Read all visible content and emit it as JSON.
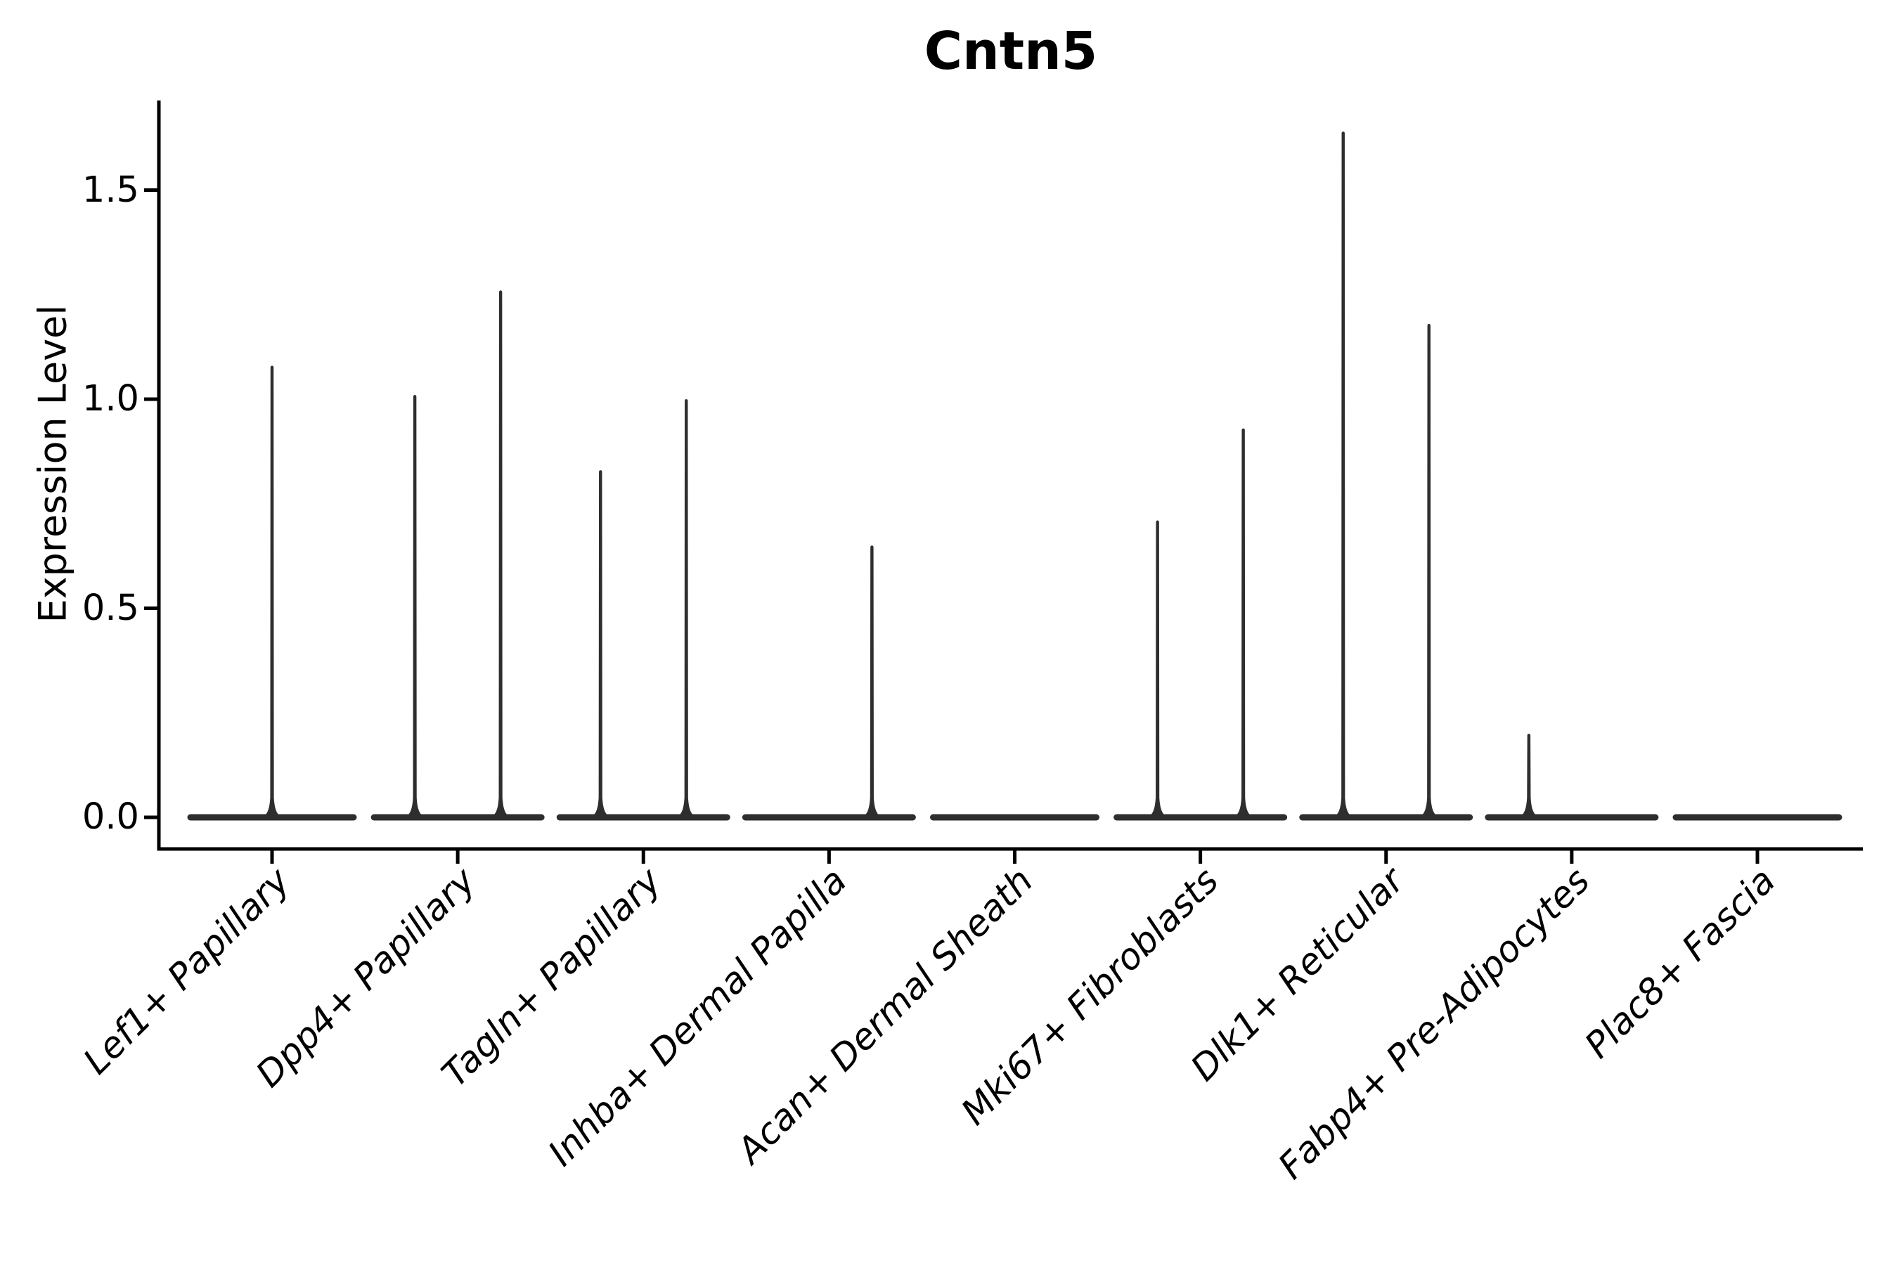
{
  "chart_data": {
    "type": "violin",
    "title": "Cntn5",
    "ylabel": "Expression Level",
    "xlabel": "",
    "ytick_labels": [
      "0.0",
      "0.5",
      "1.0",
      "1.5"
    ],
    "ytick_values": [
      0.0,
      0.5,
      1.0,
      1.5
    ],
    "ylim": [
      0,
      1.71
    ],
    "grid": false,
    "legend": null,
    "categories": [
      "Lef1+ Papillary",
      "Dpp4+ Papillary",
      "Tagln+ Papillary",
      "Inhba+ Dermal Papilla",
      "Acan+ Dermal Sheath",
      "Mki67+ Fibroblasts",
      "Dlk1+ Reticular",
      "Fabp4+ Pre-Adipocytes",
      "Plac8+ Fascia"
    ],
    "violins": [
      {
        "category": "Lef1+ Papillary",
        "parts": [
          {
            "pos": "full",
            "peak": 1.08
          }
        ]
      },
      {
        "category": "Dpp4+ Papillary",
        "parts": [
          {
            "pos": "left",
            "peak": 1.01
          },
          {
            "pos": "right",
            "peak": 1.26
          }
        ]
      },
      {
        "category": "Tagln+ Papillary",
        "parts": [
          {
            "pos": "left",
            "peak": 0.83
          },
          {
            "pos": "right",
            "peak": 1.0
          }
        ]
      },
      {
        "category": "Inhba+ Dermal Papilla",
        "parts": [
          {
            "pos": "left",
            "peak": 0
          },
          {
            "pos": "right",
            "peak": 0.65
          }
        ]
      },
      {
        "category": "Acan+ Dermal Sheath",
        "parts": [
          {
            "pos": "full",
            "peak": 0
          }
        ]
      },
      {
        "category": "Mki67+ Fibroblasts",
        "parts": [
          {
            "pos": "left",
            "peak": 0.71
          },
          {
            "pos": "right",
            "peak": 0.93
          }
        ]
      },
      {
        "category": "Dlk1+ Reticular",
        "parts": [
          {
            "pos": "left",
            "peak": 1.64
          },
          {
            "pos": "right",
            "peak": 1.18
          }
        ]
      },
      {
        "category": "Fabp4+ Pre-Adipocytes",
        "parts": [
          {
            "pos": "left",
            "peak": 0.2
          },
          {
            "pos": "right",
            "peak": 0
          }
        ]
      },
      {
        "category": "Plac8+ Fascia",
        "parts": [
          {
            "pos": "full",
            "peak": 0
          }
        ]
      }
    ],
    "colors": {
      "violin_stroke": "#2e2e2e",
      "axis": "#000000",
      "text": "#000000",
      "background": "#ffffff"
    }
  }
}
